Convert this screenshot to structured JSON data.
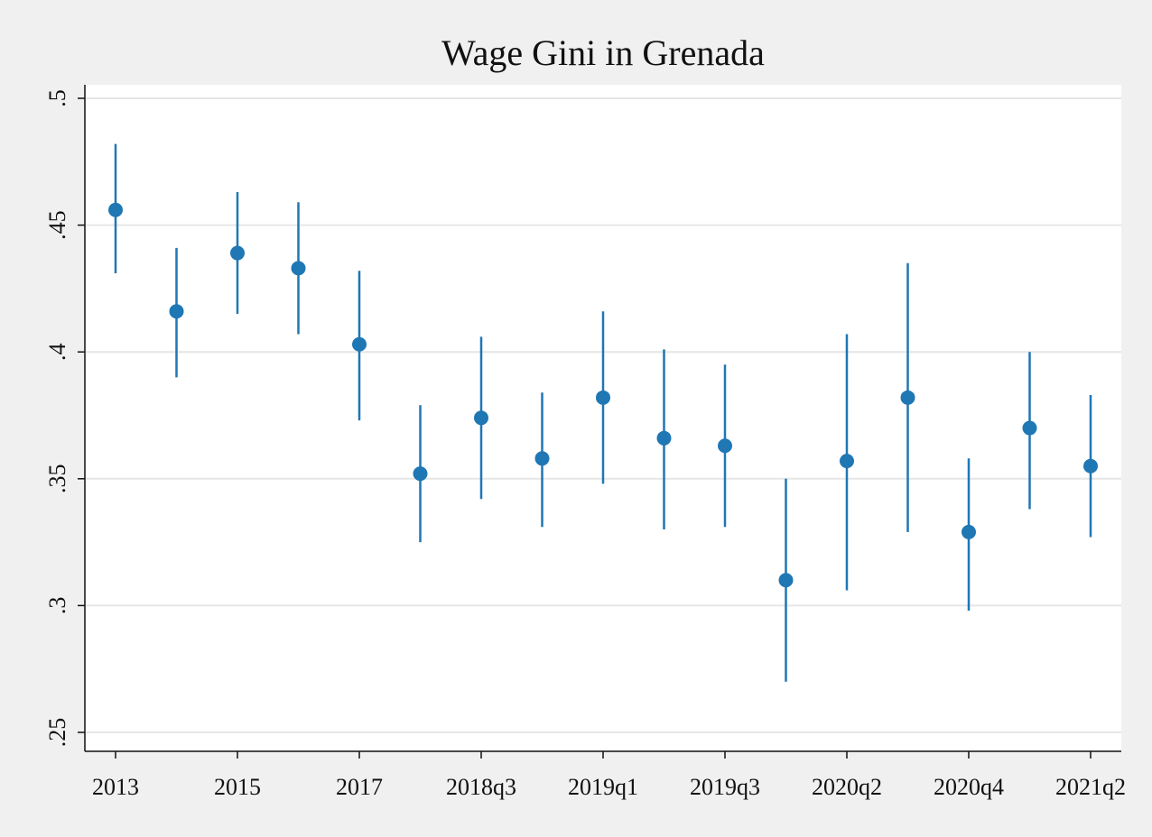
{
  "chart_data": {
    "type": "scatter",
    "title": "Wage Gini in Grenada",
    "xlabel": "",
    "ylabel": "",
    "ylim": [
      0.25,
      0.5
    ],
    "y_ticks": [
      {
        "value": 0.25,
        "label": ".25"
      },
      {
        "value": 0.3,
        "label": ".3"
      },
      {
        "value": 0.35,
        "label": ".35"
      },
      {
        "value": 0.4,
        "label": ".4"
      },
      {
        "value": 0.45,
        "label": ".45"
      },
      {
        "value": 0.5,
        "label": ".5"
      }
    ],
    "x_tick_labels": [
      "2013",
      "2015",
      "2017",
      "2018q3",
      "2019q1",
      "2019q3",
      "2020q2",
      "2020q4",
      "2021q2"
    ],
    "grid": true,
    "legend": "none",
    "series": [
      {
        "color": "#1f77b4",
        "points": [
          {
            "x": "2013",
            "y": 0.456,
            "lo": 0.431,
            "hi": 0.482
          },
          {
            "x": "2014",
            "y": 0.416,
            "lo": 0.39,
            "hi": 0.441
          },
          {
            "x": "2015",
            "y": 0.439,
            "lo": 0.415,
            "hi": 0.463
          },
          {
            "x": "2016",
            "y": 0.433,
            "lo": 0.407,
            "hi": 0.459
          },
          {
            "x": "2017",
            "y": 0.403,
            "lo": 0.373,
            "hi": 0.432
          },
          {
            "x": "2018q2",
            "y": 0.352,
            "lo": 0.325,
            "hi": 0.379
          },
          {
            "x": "2018q3",
            "y": 0.374,
            "lo": 0.342,
            "hi": 0.406
          },
          {
            "x": "2018q4",
            "y": 0.358,
            "lo": 0.331,
            "hi": 0.384
          },
          {
            "x": "2019q1",
            "y": 0.382,
            "lo": 0.348,
            "hi": 0.416
          },
          {
            "x": "2019q2",
            "y": 0.366,
            "lo": 0.33,
            "hi": 0.401
          },
          {
            "x": "2019q3",
            "y": 0.363,
            "lo": 0.331,
            "hi": 0.395
          },
          {
            "x": "2019q4",
            "y": 0.31,
            "lo": 0.27,
            "hi": 0.35
          },
          {
            "x": "2020q2",
            "y": 0.357,
            "lo": 0.306,
            "hi": 0.407
          },
          {
            "x": "2020q3",
            "y": 0.382,
            "lo": 0.329,
            "hi": 0.435
          },
          {
            "x": "2020q4",
            "y": 0.329,
            "lo": 0.298,
            "hi": 0.358
          },
          {
            "x": "2021q1",
            "y": 0.37,
            "lo": 0.338,
            "hi": 0.4
          },
          {
            "x": "2021q2",
            "y": 0.355,
            "lo": 0.327,
            "hi": 0.383
          }
        ]
      }
    ]
  }
}
